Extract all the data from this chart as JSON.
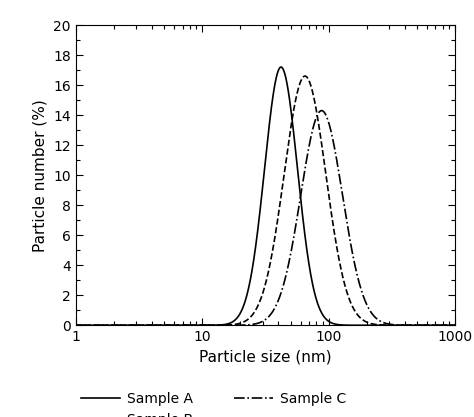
{
  "xlabel": "Particle size (nm)",
  "ylabel": "Particle number (%)",
  "xlim": [
    1,
    1000
  ],
  "ylim": [
    0,
    20
  ],
  "yticks": [
    0,
    2,
    4,
    6,
    8,
    10,
    12,
    14,
    16,
    18,
    20
  ],
  "background_color": "#ffffff",
  "line_color": "#000000",
  "samples": [
    {
      "label": "Sample A",
      "linestyle": "solid",
      "peak": 42,
      "sigma": 0.3,
      "amplitude": 17.2
    },
    {
      "label": "Sample B",
      "linestyle": "dashed",
      "peak": 65,
      "sigma": 0.38,
      "amplitude": 16.6
    },
    {
      "label": "Sample C",
      "linestyle": "dashdot",
      "peak": 88,
      "sigma": 0.38,
      "amplitude": 14.3
    }
  ],
  "legend": {
    "ncol": 2,
    "fontsize": 10,
    "frameon": false,
    "handlelength": 2.8,
    "columnspacing": 3.0,
    "handletextpad": 0.5
  },
  "figsize": [
    4.74,
    4.17
  ],
  "dpi": 100
}
